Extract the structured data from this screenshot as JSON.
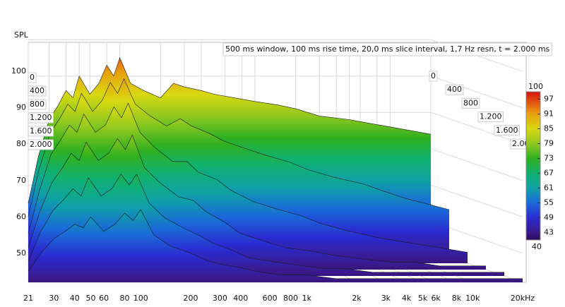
{
  "chart_data": {
    "type": "waterfall",
    "title": "500 ms window, 100 ms rise time, 20,0 ms slice interval, 1,7 Hz resn, t = 2.000 ms",
    "y_label": "SPL",
    "xscale": "log",
    "xlim": [
      21,
      20000
    ],
    "xticks": [
      21,
      30,
      40,
      50,
      60,
      80,
      100,
      200,
      300,
      400,
      600,
      800,
      {
        "value": 1000,
        "label": "1k"
      },
      {
        "value": 2000,
        "label": "2k"
      },
      {
        "value": 3000,
        "label": "3k"
      },
      {
        "value": 4000,
        "label": "4k"
      },
      {
        "value": 5000,
        "label": "5k"
      },
      {
        "value": 6000,
        "label": "6k"
      },
      {
        "value": 8000,
        "label": "8k"
      },
      {
        "value": 10000,
        "label": "10k"
      },
      {
        "value": 20000,
        "label": "20kHz"
      }
    ],
    "ylim": [
      42,
      108
    ],
    "yticks": [
      50,
      60,
      70,
      80,
      90,
      100
    ],
    "zlim": [
      0,
      2000
    ],
    "zticks": [
      0,
      400,
      800,
      {
        "value": 1200,
        "label": "1.200"
      },
      {
        "value": 1600,
        "label": "1.600"
      },
      {
        "value": 2000,
        "label": "2.000"
      }
    ],
    "x": [
      21,
      25,
      30,
      35,
      40,
      45,
      50,
      60,
      70,
      80,
      90,
      100,
      120,
      150,
      200,
      250,
      300,
      400,
      500,
      700,
      1000,
      1500,
      2000,
      3000,
      5000,
      7000,
      10000,
      20000
    ],
    "series": [
      {
        "values": [
          55,
          68,
          78,
          82,
          86,
          84,
          90,
          85,
          88,
          93,
          90,
          95,
          88,
          86,
          84,
          88,
          87,
          86,
          85,
          84,
          83,
          82,
          81,
          79,
          78,
          77,
          76,
          74
        ]
      },
      {
        "values": [
          53,
          66,
          76,
          80,
          84,
          82,
          87,
          82,
          85,
          90,
          87,
          91,
          84,
          81,
          78,
          80,
          78,
          76,
          74,
          72,
          70,
          68,
          66,
          64,
          62,
          60,
          58,
          55
        ]
      },
      {
        "values": [
          50,
          62,
          72,
          76,
          80,
          78,
          83,
          78,
          80,
          85,
          82,
          86,
          78,
          74,
          70,
          70,
          67,
          65,
          62,
          59,
          57,
          55,
          53,
          51,
          49,
          48,
          47,
          45
        ]
      },
      {
        "values": [
          48,
          58,
          66,
          70,
          74,
          72,
          77,
          72,
          74,
          78,
          75,
          79,
          70,
          66,
          62,
          61,
          58,
          55,
          52,
          50,
          48,
          47,
          46,
          45,
          44,
          44,
          43,
          43
        ]
      },
      {
        "values": [
          46,
          54,
          60,
          63,
          66,
          64,
          69,
          64,
          66,
          70,
          67,
          70,
          62,
          58,
          55,
          53,
          51,
          49,
          47,
          46,
          45,
          44,
          44,
          43,
          43,
          43,
          43,
          43
        ]
      },
      {
        "values": [
          45,
          50,
          54,
          56,
          58,
          57,
          60,
          56,
          58,
          61,
          59,
          62,
          55,
          52,
          50,
          48,
          47,
          46,
          45,
          44,
          44,
          43,
          43,
          43,
          43,
          43,
          43,
          43
        ]
      }
    ],
    "colorbar": {
      "ticks": [
        40,
        43,
        49,
        55,
        61,
        67,
        73,
        79,
        85,
        91,
        97,
        100
      ],
      "colors": [
        "#2a0a5a",
        "#3a1a8a",
        "#2a2ad0",
        "#1a6ad8",
        "#10a0a8",
        "#10b070",
        "#30b020",
        "#90c820",
        "#d8d810",
        "#e8a010",
        "#e04010",
        "#d01010"
      ]
    }
  }
}
